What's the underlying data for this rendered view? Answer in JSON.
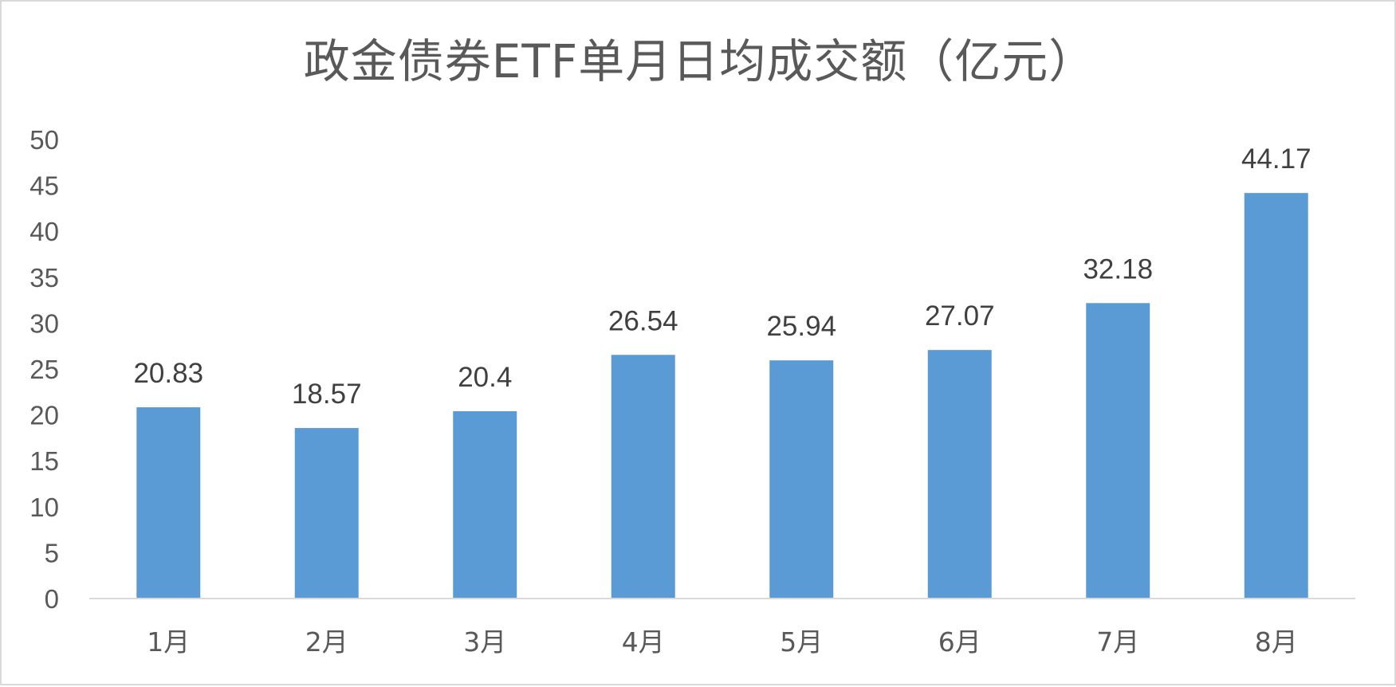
{
  "chart_data": {
    "type": "bar",
    "title": "政金债券ETF单月日均成交额（亿元）",
    "categories": [
      "1月",
      "2月",
      "3月",
      "4月",
      "5月",
      "6月",
      "7月",
      "8月"
    ],
    "values": [
      20.83,
      18.57,
      20.4,
      26.54,
      25.94,
      27.07,
      32.18,
      44.17
    ],
    "data_labels": [
      "20.83",
      "18.57",
      "20.4",
      "26.54",
      "25.94",
      "27.07",
      "32.18",
      "44.17"
    ],
    "yticks": [
      "0",
      "5",
      "10",
      "15",
      "20",
      "25",
      "30",
      "35",
      "40",
      "45",
      "50"
    ],
    "ylim": [
      0,
      50
    ],
    "xlabel": "",
    "ylabel": "",
    "grid": false,
    "legend": "none",
    "colors": {
      "bar": "#5b9bd5",
      "axis": "#d9d9d9",
      "text": "#595959",
      "label": "#404040"
    }
  }
}
